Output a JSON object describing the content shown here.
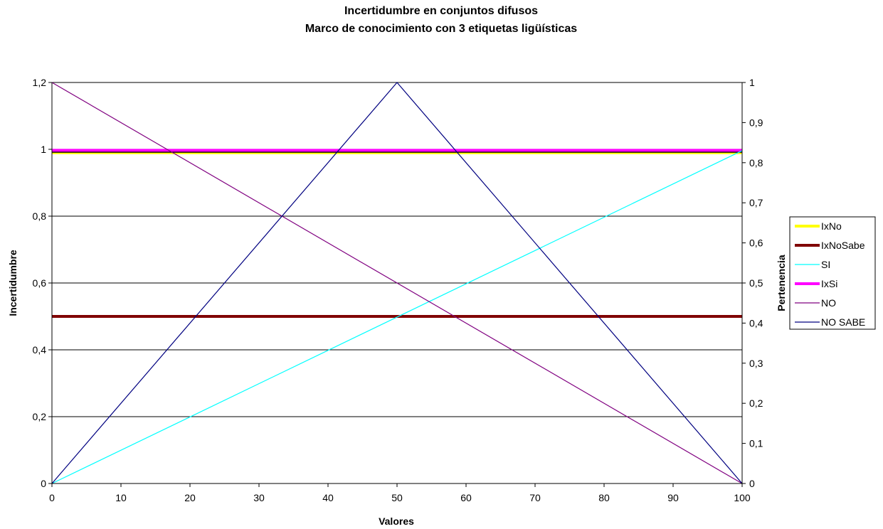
{
  "chart_data": {
    "type": "line",
    "title": "Incertidumbre en conjuntos difusos",
    "subtitle": "Marco de conocimiento con 3 etiquetas ligüísticas",
    "xlabel": "Valores",
    "ylabel": "Incertidumbre",
    "y2label": "Pertenencia",
    "xlim": [
      0,
      100
    ],
    "ylim": [
      0,
      1.2
    ],
    "y2lim": [
      0,
      1
    ],
    "x_ticks": [
      "0",
      "10",
      "20",
      "30",
      "40",
      "50",
      "60",
      "70",
      "80",
      "90",
      "100"
    ],
    "y_ticks": [
      "0",
      "0,2",
      "0,4",
      "0,6",
      "0,8",
      "1",
      "1,2"
    ],
    "y2_ticks": [
      "0",
      "0,1",
      "0,2",
      "0,3",
      "0,4",
      "0,5",
      "0,6",
      "0,7",
      "0,8",
      "0,9",
      "1"
    ],
    "grid": "horizontal",
    "legend_position": "right",
    "series": [
      {
        "name": "IxNo",
        "axis": "left",
        "color": "#ffff00",
        "width": 4,
        "x": [
          0,
          100
        ],
        "y": [
          0.99,
          0.99
        ]
      },
      {
        "name": "IxNoSabe",
        "axis": "left",
        "color": "#800000",
        "width": 4,
        "x": [
          0,
          100
        ],
        "y": [
          0.5,
          0.5
        ]
      },
      {
        "name": "SI",
        "axis": "right",
        "color": "#00ffff",
        "width": 1.2,
        "x": [
          0,
          100
        ],
        "y": [
          0,
          0.83
        ]
      },
      {
        "name": "IxSi",
        "axis": "left",
        "color": "#ff00ff",
        "width": 4,
        "x": [
          0,
          100
        ],
        "y": [
          0.997,
          0.997
        ]
      },
      {
        "name": "NO",
        "axis": "right",
        "color": "#800080",
        "width": 1.2,
        "x": [
          0,
          100
        ],
        "y": [
          1,
          0
        ]
      },
      {
        "name": "NO SABE",
        "axis": "right",
        "color": "#000080",
        "width": 1.2,
        "x": [
          0,
          50,
          100
        ],
        "y": [
          0,
          1,
          0
        ]
      }
    ],
    "extra_line": {
      "color": "#000000",
      "axis": "left",
      "x": [
        0,
        100
      ],
      "y": [
        0.993,
        0.993
      ]
    }
  }
}
